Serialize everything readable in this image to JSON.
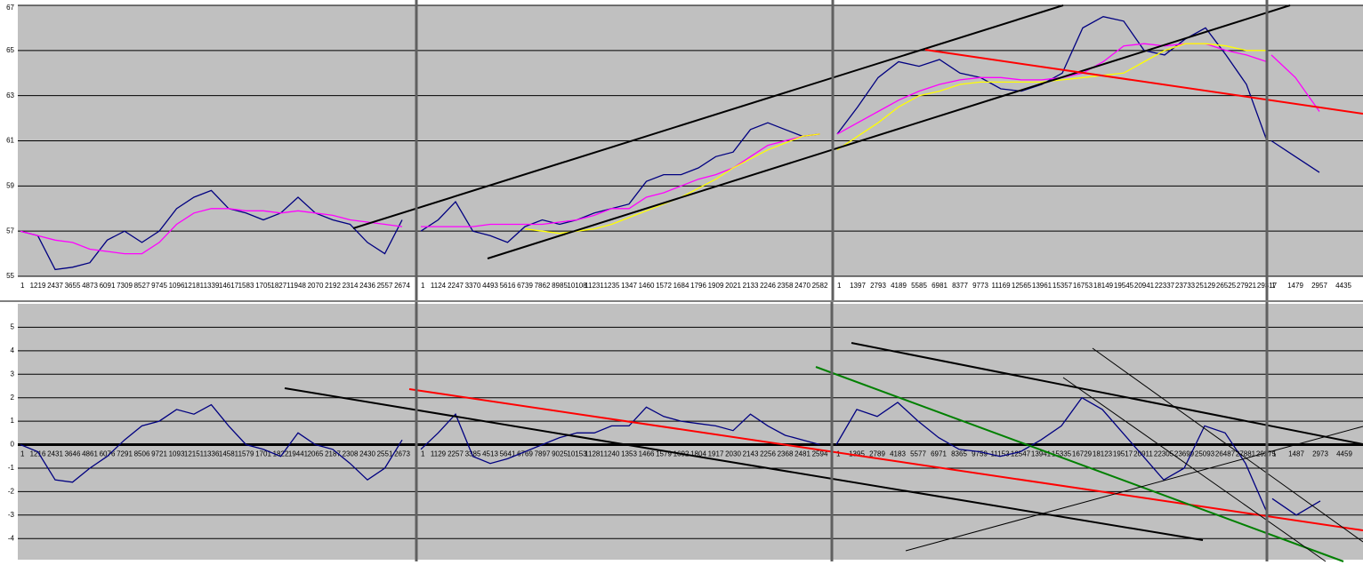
{
  "chart_data": [
    {
      "type": "line",
      "ylim": [
        55,
        67
      ],
      "yticks": [
        55,
        57,
        59,
        61,
        63,
        65,
        67
      ],
      "sections": [
        {
          "categories": [
            "1",
            "1219",
            "2437",
            "3655",
            "4873",
            "6091",
            "7309",
            "8527",
            "9745",
            "1096",
            "12181",
            "1339",
            "14617",
            "1583",
            "1705",
            "18271",
            "1948",
            "2070",
            "2192",
            "2314",
            "2436",
            "2557",
            "2674"
          ],
          "series": [
            {
              "color": "#000080",
              "values": [
                57,
                56.8,
                55.3,
                55.4,
                55.6,
                56.6,
                57,
                56.5,
                57,
                58,
                58.5,
                58.8,
                58,
                57.8,
                57.5,
                57.8,
                58.5,
                57.8,
                57.5,
                57.3,
                56.5,
                56,
                57.5
              ]
            },
            {
              "color": "#ff00ff",
              "values": [
                57,
                56.8,
                56.6,
                56.5,
                56.2,
                56.1,
                56,
                56,
                56.5,
                57.3,
                57.8,
                58,
                58,
                57.9,
                57.9,
                57.8,
                57.9,
                57.8,
                57.7,
                57.5,
                57.4,
                57.3,
                57.2
              ]
            }
          ]
        },
        {
          "categories": [
            "1",
            "1124",
            "2247",
            "3370",
            "4493",
            "5616",
            "6739",
            "7862",
            "8985",
            "10108",
            "11231",
            "1235",
            "1347",
            "1460",
            "1572",
            "1684",
            "1796",
            "1909",
            "2021",
            "2133",
            "2246",
            "2358",
            "2470",
            "2582"
          ],
          "series": [
            {
              "color": "#000080",
              "values": [
                57,
                57.5,
                58.3,
                57,
                56.8,
                56.5,
                57.2,
                57.5,
                57.3,
                57.5,
                57.8,
                58,
                58.2,
                59.2,
                59.5,
                59.5,
                59.8,
                60.3,
                60.5,
                61.5,
                61.8,
                61.5,
                61.2,
                61.3
              ]
            },
            {
              "color": "#ff00ff",
              "values": [
                57.2,
                57.2,
                57.2,
                57.2,
                57.3,
                57.3,
                57.3,
                57.3,
                57.4,
                57.5,
                57.7,
                58,
                58,
                58.5,
                58.7,
                59,
                59.3,
                59.5,
                59.8,
                60.3,
                60.8,
                61,
                61.2,
                61.3
              ]
            },
            {
              "color": "#ffff00",
              "values": [
                null,
                null,
                null,
                null,
                null,
                null,
                57.1,
                57,
                56.9,
                57,
                57.1,
                57.3,
                57.6,
                57.9,
                58.2,
                58.5,
                58.9,
                59.3,
                59.8,
                60.2,
                60.6,
                60.9,
                61.2,
                61.3
              ]
            }
          ]
        },
        {
          "categories": [
            "1",
            "1397",
            "2793",
            "4189",
            "5585",
            "6981",
            "8377",
            "9773",
            "11169",
            "12565",
            "13961",
            "15357",
            "16753",
            "18149",
            "19545",
            "20941",
            "22337",
            "23733",
            "25129",
            "26525",
            "27921",
            "29317"
          ],
          "series": [
            {
              "color": "#000080",
              "values": [
                61.3,
                62.5,
                63.8,
                64.5,
                64.3,
                64.6,
                64,
                63.8,
                63.3,
                63.2,
                63.5,
                64,
                66,
                66.5,
                66.3,
                65,
                64.8,
                65.5,
                66,
                64.8,
                63.5,
                61
              ]
            },
            {
              "color": "#ff00ff",
              "values": [
                61.3,
                61.8,
                62.3,
                62.8,
                63.2,
                63.5,
                63.7,
                63.8,
                63.8,
                63.7,
                63.7,
                63.8,
                64,
                64.5,
                65.2,
                65.3,
                65.2,
                65.3,
                65.3,
                65,
                64.8,
                64.5
              ]
            },
            {
              "color": "#ffff00",
              "values": [
                60.6,
                61.2,
                61.8,
                62.5,
                63,
                63.2,
                63.5,
                63.6,
                63.6,
                63.6,
                63.6,
                63.7,
                63.8,
                63.9,
                64,
                64.5,
                65,
                65.3,
                65.3,
                65.2,
                65,
                65
              ]
            }
          ]
        },
        {
          "categories": [
            "1",
            "1479",
            "2957",
            "4435"
          ],
          "series": [
            {
              "color": "#000080",
              "values": [
                61,
                60.3,
                59.6,
                null
              ]
            },
            {
              "color": "#ff00ff",
              "values": [
                64.8,
                63.8,
                62.3,
                null
              ]
            }
          ]
        }
      ]
    },
    {
      "type": "line",
      "ylim": [
        -4.9,
        6
      ],
      "yticks": [
        -4,
        -3,
        -2,
        -1,
        0,
        1,
        2,
        3,
        4,
        5
      ],
      "sections": [
        {
          "categories": [
            "1",
            "1216",
            "2431",
            "3646",
            "4861",
            "6076",
            "7291",
            "8506",
            "9721",
            "1093",
            "12151",
            "1336",
            "14581",
            "1579",
            "1701",
            "1822",
            "19441",
            "2065",
            "2187",
            "2308",
            "2430",
            "2551",
            "2673"
          ],
          "series": [
            {
              "color": "#000080",
              "values": [
                0,
                -0.3,
                -1.5,
                -1.6,
                -1,
                -0.5,
                0.2,
                0.8,
                1,
                1.5,
                1.3,
                1.7,
                0.8,
                0,
                -0.2,
                -0.5,
                0.5,
                0,
                -0.2,
                -0.8,
                -1.5,
                -1,
                0.2
              ]
            }
          ]
        },
        {
          "categories": [
            "1",
            "1129",
            "2257",
            "3385",
            "4513",
            "5641",
            "6769",
            "7897",
            "9025",
            "10153",
            "11281",
            "1240",
            "1353",
            "1466",
            "1579",
            "1692",
            "1804",
            "1917",
            "2030",
            "2143",
            "2256",
            "2368",
            "2481",
            "2594"
          ],
          "series": [
            {
              "color": "#000080",
              "values": [
                -0.2,
                0.5,
                1.3,
                -0.5,
                -0.8,
                -0.6,
                -0.3,
                0,
                0.3,
                0.5,
                0.5,
                0.8,
                0.8,
                1.6,
                1.2,
                1,
                0.9,
                0.8,
                0.6,
                1.3,
                0.8,
                0.4,
                0.2,
                0
              ]
            }
          ]
        },
        {
          "categories": [
            "1",
            "1395",
            "2789",
            "4183",
            "5577",
            "6971",
            "8365",
            "9759",
            "11153",
            "12547",
            "13941",
            "15335",
            "16729",
            "18123",
            "19517",
            "20911",
            "22305",
            "23699",
            "25093",
            "26487",
            "27881",
            "29275"
          ],
          "series": [
            {
              "color": "#000080",
              "values": [
                0,
                1.5,
                1.2,
                1.8,
                1,
                0.3,
                -0.2,
                -0.3,
                -0.5,
                -0.3,
                0.2,
                0.8,
                2,
                1.5,
                0.5,
                -0.5,
                -1.5,
                -1,
                0.8,
                0.5,
                -0.8,
                -2.8
              ]
            }
          ]
        },
        {
          "categories": [
            "1",
            "1487",
            "2973",
            "4459"
          ],
          "series": [
            {
              "color": "#000080",
              "values": [
                -2.3,
                -3,
                -2.4,
                null
              ]
            }
          ]
        }
      ]
    }
  ]
}
